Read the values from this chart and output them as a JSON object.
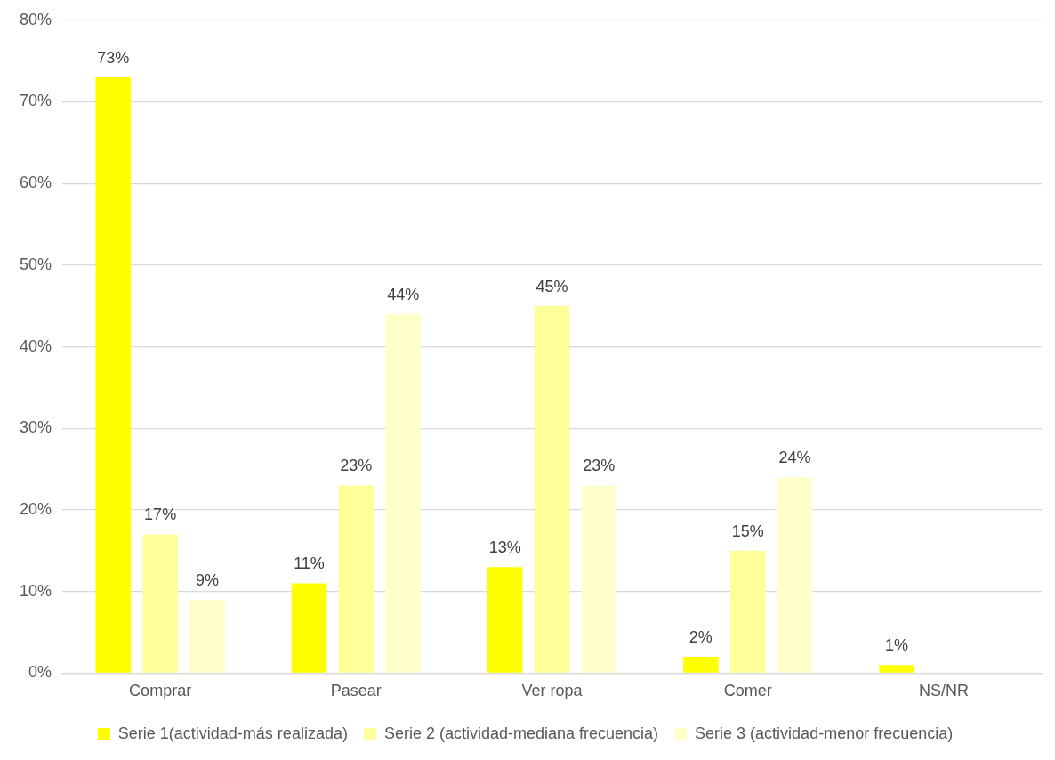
{
  "chart_data": {
    "type": "bar",
    "categories": [
      "Comprar",
      "Pasear",
      "Ver ropa",
      "Comer",
      "NS/NR"
    ],
    "series": [
      {
        "name": "Serie 1(actividad-más realizada)",
        "color": "#ffff00",
        "values": [
          73,
          11,
          13,
          2,
          1
        ],
        "value_labels": [
          "73%",
          "11%",
          "13%",
          "2%",
          "1%"
        ]
      },
      {
        "name": "Serie 2 (actividad-mediana frecuencia)",
        "color": "#ffff99",
        "values": [
          17,
          23,
          45,
          15,
          null
        ],
        "value_labels": [
          "17%",
          "23%",
          "45%",
          "15%",
          null
        ]
      },
      {
        "name": "Serie 3 (actividad-menor frecuencia)",
        "color": "#ffffcc",
        "values": [
          9,
          44,
          23,
          24,
          null
        ],
        "value_labels": [
          "9%",
          "44%",
          "23%",
          "24%",
          null
        ]
      }
    ],
    "ylim": [
      0,
      80
    ],
    "yticks": [
      {
        "value": 0,
        "label": "0%"
      },
      {
        "value": 10,
        "label": "10%"
      },
      {
        "value": 20,
        "label": "20%"
      },
      {
        "value": 30,
        "label": "30%"
      },
      {
        "value": 40,
        "label": "40%"
      },
      {
        "value": 50,
        "label": "50%"
      },
      {
        "value": 60,
        "label": "60%"
      },
      {
        "value": 70,
        "label": "70%"
      },
      {
        "value": 80,
        "label": "80%"
      }
    ],
    "grid": "y",
    "legend": "bottom"
  }
}
